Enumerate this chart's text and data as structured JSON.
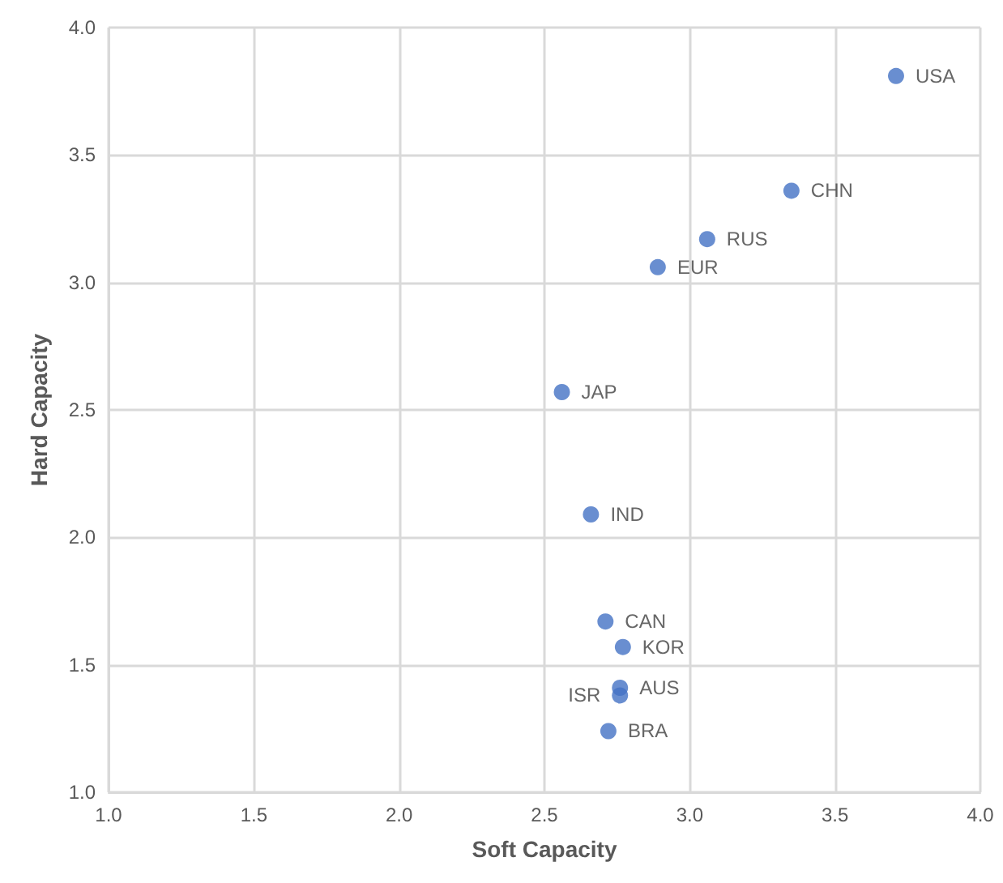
{
  "chart_data": {
    "type": "scatter",
    "xlabel": "Soft Capacity",
    "ylabel": "Hard Capacity",
    "xlim": [
      1.0,
      4.0
    ],
    "xticks": [
      {
        "value": 1,
        "label": "1.0"
      },
      {
        "value": 1.5,
        "label": "1.5"
      },
      {
        "value": 2,
        "label": "2.0"
      },
      {
        "value": 2.5,
        "label": "2.5"
      },
      {
        "value": 3,
        "label": "3.0"
      },
      {
        "value": 3.5,
        "label": "3.5"
      },
      {
        "value": 4,
        "label": "4.0"
      }
    ],
    "ylim": [
      1.0,
      4.0
    ],
    "yticks": [
      {
        "value": 1,
        "label": "1.0"
      },
      {
        "value": 1.5,
        "label": "1.5"
      },
      {
        "value": 2,
        "label": "2.0"
      },
      {
        "value": 2.5,
        "label": "2.5"
      },
      {
        "value": 3,
        "label": "3.0"
      },
      {
        "value": 3.5,
        "label": "3.5"
      },
      {
        "value": 4,
        "label": "4.0"
      }
    ],
    "grid": true,
    "marker": "circle",
    "series": [
      {
        "color": "#4472c4",
        "x": [
          3.71,
          3.35,
          3.06,
          2.89,
          2.56,
          2.66,
          2.71,
          2.77,
          2.76,
          2.76,
          2.72
        ],
        "values": [
          3.81,
          3.36,
          3.17,
          3.06,
          2.57,
          2.09,
          1.67,
          1.57,
          1.38,
          1.41,
          1.24
        ]
      }
    ],
    "annotations": [
      {
        "text": "USA",
        "x": 3.71,
        "y": 3.81
      },
      {
        "text": "CHN",
        "x": 3.35,
        "y": 3.36
      },
      {
        "text": "RUS",
        "x": 3.06,
        "y": 3.17
      },
      {
        "text": "EUR",
        "x": 2.89,
        "y": 3.06
      },
      {
        "text": "JAP",
        "x": 2.56,
        "y": 2.57
      },
      {
        "text": "IND",
        "x": 2.66,
        "y": 2.09
      },
      {
        "text": "CAN",
        "x": 2.71,
        "y": 1.67
      },
      {
        "text": "KOR",
        "x": 2.77,
        "y": 1.57
      },
      {
        "text": "ISR",
        "x": 2.76,
        "y": 1.38
      },
      {
        "text": "AUS",
        "x": 2.76,
        "y": 1.41
      },
      {
        "text": "BRA",
        "x": 2.72,
        "y": 1.24
      }
    ]
  }
}
